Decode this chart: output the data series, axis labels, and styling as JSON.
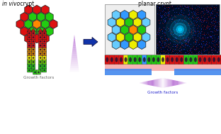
{
  "bg_color": "#ffffff",
  "hex_red": "#dd1111",
  "hex_green": "#22cc11",
  "hex_yellow": "#eeee00",
  "hex_orange": "#ff8800",
  "hex_blue": "#3399ff",
  "hex_lightblue": "#66ccff",
  "hex_dark": "#221133",
  "title_left_italic": "in vivo",
  "title_left_normal": " crypt",
  "title_right": "planar crypt",
  "gf_left_color": "#777777",
  "gf_right_color": "#2222cc",
  "arrow_color": "#1133aa",
  "mic_bg": "#000820",
  "mic_glow": "#00ccff",
  "mic_red_dot": "#cc1111",
  "mic_blue_dot": "#2244ff",
  "membrane_pink": "#f4a0a0",
  "membrane_blue": "#4488ee",
  "gradient_purple": "#aa55cc"
}
